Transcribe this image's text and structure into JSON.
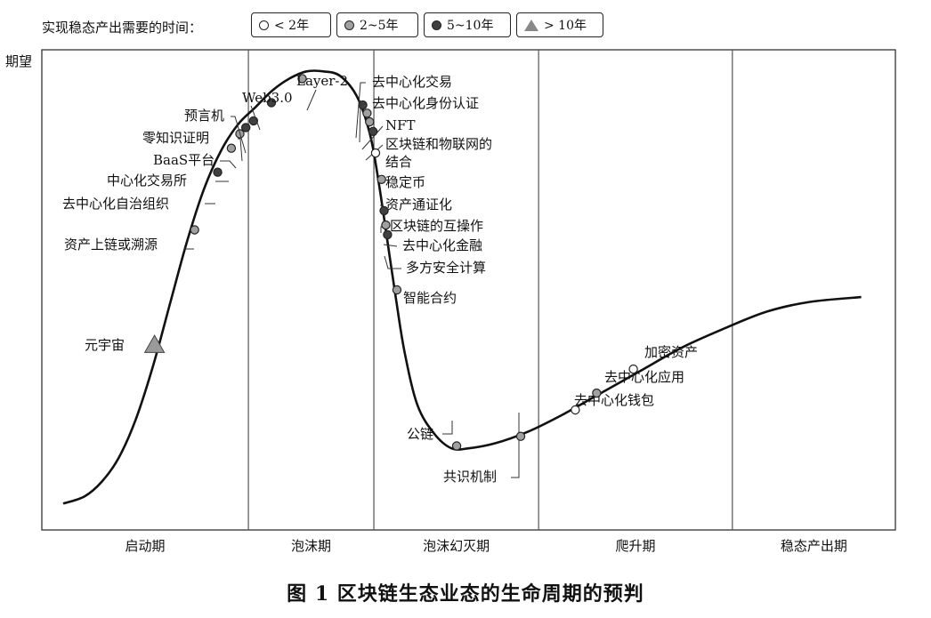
{
  "legend": {
    "title": "实现稳态产出需要的时间：",
    "items": [
      {
        "label": "< 2年",
        "marker": "circle",
        "color": "#ffffff"
      },
      {
        "label": "2~5年",
        "marker": "circle",
        "color": "#a0a0a0"
      },
      {
        "label": "5~10年",
        "marker": "circle",
        "color": "#404040"
      },
      {
        "label": "> 10年",
        "marker": "triangle",
        "color": "#9a9a9a"
      }
    ]
  },
  "caption": "图 1    区块链生态业态的生命周期的预判",
  "chart_data": {
    "type": "line",
    "title": "区块链生态业态的生命周期的预判",
    "ylabel": "期望",
    "xlabel": "",
    "x_range": [
      0,
      100
    ],
    "y_range": [
      0,
      100
    ],
    "phases": [
      "启动期",
      "泡沫期",
      "泡沫幻灭期",
      "爬升期",
      "稳态产出期"
    ],
    "phase_boundaries": [
      24.2,
      38.9,
      58.2,
      80.9
    ],
    "curve": [
      [
        2.5,
        5.5
      ],
      [
        5,
        7
      ],
      [
        7,
        10
      ],
      [
        9,
        15
      ],
      [
        11,
        23
      ],
      [
        13,
        34
      ],
      [
        15,
        47
      ],
      [
        17,
        60
      ],
      [
        19,
        71
      ],
      [
        21,
        79
      ],
      [
        23,
        84.5
      ],
      [
        25,
        88
      ],
      [
        27,
        91.5
      ],
      [
        29,
        94
      ],
      [
        31,
        95.5
      ],
      [
        33,
        95.5
      ],
      [
        35,
        94.5
      ],
      [
        37,
        90
      ],
      [
        38.5,
        82
      ],
      [
        39.5,
        72
      ],
      [
        40.5,
        60
      ],
      [
        41.5,
        48
      ],
      [
        42.5,
        37
      ],
      [
        44,
        26
      ],
      [
        46,
        20
      ],
      [
        48,
        17
      ],
      [
        50,
        17
      ],
      [
        53,
        18
      ],
      [
        57,
        20.5
      ],
      [
        61,
        24
      ],
      [
        65,
        28
      ],
      [
        70,
        33
      ],
      [
        75,
        38
      ],
      [
        80,
        42
      ],
      [
        85,
        45.5
      ],
      [
        90,
        47.5
      ],
      [
        96,
        48.5
      ]
    ],
    "points": [
      {
        "label": "元宇宙",
        "x": 13.2,
        "y": 38.5,
        "category": "> 10年"
      },
      {
        "label": "资产上链或溯源",
        "x": 17.9,
        "y": 62.5,
        "category": "2~5年"
      },
      {
        "label": "去中心化自治组织",
        "x": 20.6,
        "y": 74.5,
        "category": "5~10年"
      },
      {
        "label": "中心化交易所",
        "x": 22.2,
        "y": 79.5,
        "category": "2~5年"
      },
      {
        "label": "BaaS平台",
        "x": 23.2,
        "y": 82.5,
        "category": "2~5年"
      },
      {
        "label": "零知识证明",
        "x": 23.9,
        "y": 83.8,
        "category": "5~10年"
      },
      {
        "label": "预言机",
        "x": 24.8,
        "y": 85.2,
        "category": "5~10年"
      },
      {
        "label": "Web3.0",
        "x": 26.9,
        "y": 89.0,
        "category": "5~10年"
      },
      {
        "label": "Layer-2",
        "x": 30.5,
        "y": 94.0,
        "category": "2~5年"
      },
      {
        "label": "去中心化交易",
        "x": 37.6,
        "y": 88.5,
        "category": "5~10年"
      },
      {
        "label": "去中心化身份认证",
        "x": 38.1,
        "y": 86.8,
        "category": "2~5年"
      },
      {
        "label": "NFT",
        "x": 38.4,
        "y": 85.0,
        "category": "2~5年"
      },
      {
        "label": "区块链和物联网的结合",
        "x": 38.8,
        "y": 83.0,
        "category": "5~10年"
      },
      {
        "label": "稳定币",
        "x": 39.1,
        "y": 78.5,
        "category": "< 2年"
      },
      {
        "label": "资产通证化",
        "x": 39.8,
        "y": 73.0,
        "category": "2~5年"
      },
      {
        "label": "区块链的互操作",
        "x": 40.1,
        "y": 66.5,
        "category": "5~10年"
      },
      {
        "label": "去中心化金融",
        "x": 40.3,
        "y": 63.5,
        "category": "2~5年"
      },
      {
        "label": "多方安全计算",
        "x": 40.5,
        "y": 61.5,
        "category": "5~10年"
      },
      {
        "label": "智能合约",
        "x": 41.6,
        "y": 50.0,
        "category": "2~5年"
      },
      {
        "label": "公链",
        "x": 48.6,
        "y": 17.5,
        "category": "2~5年"
      },
      {
        "label": "共识机制",
        "x": 56.1,
        "y": 19.5,
        "category": "2~5年"
      },
      {
        "label": "去中心化钱包",
        "x": 62.5,
        "y": 25.0,
        "category": "< 2年"
      },
      {
        "label": "去中心化应用",
        "x": 65.0,
        "y": 28.5,
        "category": "2~5年"
      },
      {
        "label": "加密资产",
        "x": 69.3,
        "y": 33.5,
        "category": "< 2年"
      }
    ]
  }
}
